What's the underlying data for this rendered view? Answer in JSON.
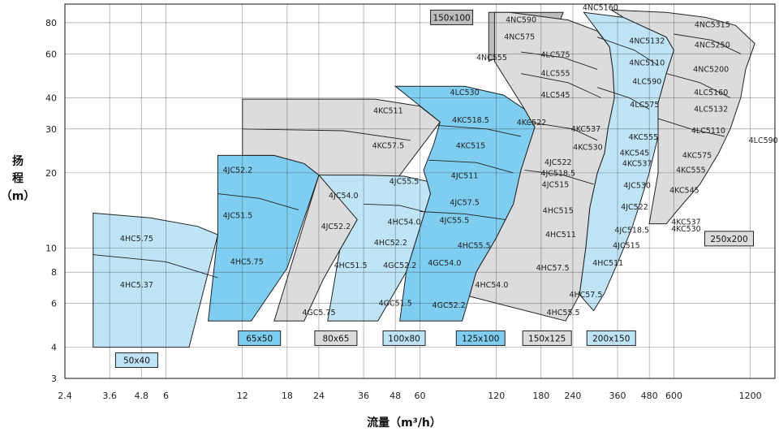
{
  "chart_data": {
    "type": "pump-performance-envelope",
    "xlabel": "流量（m³/h）",
    "ylabel": [
      "扬",
      "程",
      "（m）"
    ],
    "x_scale": "log",
    "y_scale": "log",
    "xlim": [
      2.4,
      1500
    ],
    "ylim": [
      3,
      95
    ],
    "x_ticks": [
      2.4,
      3.6,
      4.8,
      6,
      12,
      18,
      24,
      36,
      48,
      60,
      120,
      180,
      240,
      360,
      480,
      600,
      1200
    ],
    "y_ticks": [
      3,
      4,
      6,
      8,
      10,
      20,
      30,
      40,
      60,
      80
    ],
    "grid": true,
    "colors": {
      "light_blue": "#bfe4f6",
      "mid_blue": "#7fcdf0",
      "light_gray": "#dcdcdc",
      "dark_gray": "#bdbdbd",
      "outline": "#222222"
    },
    "regions": [
      {
        "label": "4HC5.75",
        "x": 4.6,
        "y": 10.9,
        "color": "light_blue"
      },
      {
        "label": "4HC5.37",
        "x": 4.6,
        "y": 7.1,
        "color": "light_blue"
      },
      {
        "label": "4JC52.2",
        "x": 11.5,
        "y": 20.5,
        "color": "mid_blue"
      },
      {
        "label": "4JC51.5",
        "x": 11.5,
        "y": 13.5,
        "color": "mid_blue"
      },
      {
        "label": "4HC5.75",
        "x": 12.5,
        "y": 8.8,
        "color": "mid_blue"
      },
      {
        "label": "4KC511",
        "x": 45,
        "y": 35.5,
        "color": "light_gray"
      },
      {
        "label": "4KC57.5",
        "x": 45,
        "y": 25.7,
        "color": "light_gray"
      },
      {
        "label": "4JC54.0",
        "x": 30,
        "y": 16.2,
        "color": "light_gray"
      },
      {
        "label": "4JC52.2",
        "x": 28,
        "y": 12.2,
        "color": "light_gray"
      },
      {
        "label": "4HC51.5",
        "x": 32,
        "y": 8.5,
        "color": "light_gray"
      },
      {
        "label": "4GC5.75",
        "x": 24,
        "y": 5.5,
        "color": "light_gray"
      },
      {
        "label": "4JC55.5",
        "x": 52,
        "y": 18.5,
        "color": "light_blue"
      },
      {
        "label": "4HC54.0",
        "x": 52,
        "y": 12.7,
        "color": "light_blue"
      },
      {
        "label": "4HC52.2",
        "x": 46,
        "y": 10.5,
        "color": "light_blue"
      },
      {
        "label": "4GC52.2",
        "x": 50,
        "y": 8.5,
        "color": "light_blue"
      },
      {
        "label": "4GC51.5",
        "x": 48,
        "y": 6.0,
        "color": "light_blue"
      },
      {
        "label": "4LC530",
        "x": 90,
        "y": 42,
        "color": "mid_blue"
      },
      {
        "label": "4KC518.5",
        "x": 95,
        "y": 32.5,
        "color": "mid_blue"
      },
      {
        "label": "4KC515",
        "x": 95,
        "y": 25.7,
        "color": "mid_blue"
      },
      {
        "label": "4JC511",
        "x": 90,
        "y": 19.5,
        "color": "mid_blue"
      },
      {
        "label": "4JC57.5",
        "x": 90,
        "y": 15.2,
        "color": "mid_blue"
      },
      {
        "label": "4JC55.5",
        "x": 82,
        "y": 12.9,
        "color": "mid_blue"
      },
      {
        "label": "4HC55.5",
        "x": 98,
        "y": 10.2,
        "color": "mid_blue"
      },
      {
        "label": "4GC54.0",
        "x": 75,
        "y": 8.7,
        "color": "mid_blue"
      },
      {
        "label": "4GC52.2",
        "x": 78,
        "y": 5.9,
        "color": "mid_blue"
      },
      {
        "label": "4HC54.0",
        "x": 115,
        "y": 7.1,
        "color": "mid_blue"
      },
      {
        "label": "4KC522",
        "x": 165,
        "y": 31.8,
        "color": "mid_blue"
      },
      {
        "label": "150x100",
        "x": 80,
        "y": 84,
        "color": "box"
      },
      {
        "label": "4NC590",
        "x": 150,
        "y": 82,
        "color": "dark_gray"
      },
      {
        "label": "4NC575",
        "x": 148,
        "y": 70,
        "color": "dark_gray"
      },
      {
        "label": "4NC555",
        "x": 115,
        "y": 58,
        "color": "dark_gray"
      },
      {
        "label": "4LC575",
        "x": 205,
        "y": 59.5,
        "color": "light_gray"
      },
      {
        "label": "4LC555",
        "x": 205,
        "y": 50,
        "color": "light_gray"
      },
      {
        "label": "4LC545",
        "x": 205,
        "y": 41,
        "color": "light_gray"
      },
      {
        "label": "4KC537",
        "x": 270,
        "y": 30,
        "color": "light_gray"
      },
      {
        "label": "4KC530",
        "x": 275,
        "y": 25.3,
        "color": "light_gray"
      },
      {
        "label": "4JC522",
        "x": 210,
        "y": 22,
        "color": "light_gray"
      },
      {
        "label": "4JC518.5",
        "x": 210,
        "y": 19.9,
        "color": "light_gray"
      },
      {
        "label": "4JC515",
        "x": 205,
        "y": 17.9,
        "color": "light_gray"
      },
      {
        "label": "4HC515",
        "x": 210,
        "y": 14.1,
        "color": "light_gray"
      },
      {
        "label": "4HC511",
        "x": 215,
        "y": 11.3,
        "color": "light_gray"
      },
      {
        "label": "4HC57.5",
        "x": 200,
        "y": 8.3,
        "color": "light_gray"
      },
      {
        "label": "4HC57.5",
        "x": 270,
        "y": 6.5,
        "color": "light_gray"
      },
      {
        "label": "4HC55.5",
        "x": 220,
        "y": 5.5,
        "color": "light_gray"
      },
      {
        "label": "4NC5160",
        "x": 308,
        "y": 92,
        "color": "light_gray"
      },
      {
        "label": "4NC5132",
        "x": 470,
        "y": 67.5,
        "color": "light_blue"
      },
      {
        "label": "4NC5110",
        "x": 470,
        "y": 55.2,
        "color": "light_blue"
      },
      {
        "label": "4LC590",
        "x": 470,
        "y": 46.5,
        "color": "light_blue"
      },
      {
        "label": "4LC575",
        "x": 460,
        "y": 37.5,
        "color": "light_blue"
      },
      {
        "label": "4KC555",
        "x": 455,
        "y": 27.8,
        "color": "light_blue"
      },
      {
        "label": "4KC545",
        "x": 420,
        "y": 24,
        "color": "light_blue"
      },
      {
        "label": "4KC537",
        "x": 430,
        "y": 21.8,
        "color": "light_blue"
      },
      {
        "label": "4JC530",
        "x": 430,
        "y": 17.8,
        "color": "light_blue"
      },
      {
        "label": "4JC522",
        "x": 420,
        "y": 14.6,
        "color": "light_blue"
      },
      {
        "label": "4JC518.5",
        "x": 410,
        "y": 11.8,
        "color": "light_blue"
      },
      {
        "label": "4JC515",
        "x": 390,
        "y": 10.2,
        "color": "light_blue"
      },
      {
        "label": "4HC511",
        "x": 330,
        "y": 8.7,
        "color": "light_blue"
      },
      {
        "label": "4NC5315",
        "x": 850,
        "y": 78.5,
        "color": "light_gray"
      },
      {
        "label": "4NC5250",
        "x": 850,
        "y": 65,
        "color": "light_gray"
      },
      {
        "label": "4NC5200",
        "x": 840,
        "y": 52,
        "color": "light_gray"
      },
      {
        "label": "4LC5160",
        "x": 840,
        "y": 42,
        "color": "light_gray"
      },
      {
        "label": "4LC5132",
        "x": 840,
        "y": 36,
        "color": "light_gray"
      },
      {
        "label": "4LC5110",
        "x": 820,
        "y": 29.5,
        "color": "light_gray"
      },
      {
        "label": "4KC575",
        "x": 740,
        "y": 23.5,
        "color": "light_gray"
      },
      {
        "label": "4KC555",
        "x": 700,
        "y": 20.5,
        "color": "light_gray"
      },
      {
        "label": "4KC545",
        "x": 660,
        "y": 17,
        "color": "light_gray"
      },
      {
        "label": "4LC590",
        "x": 1350,
        "y": 27,
        "color": "callout"
      },
      {
        "label": "4KC537",
        "x": 670,
        "y": 12.7,
        "color": "callout"
      },
      {
        "label": "4KC530",
        "x": 670,
        "y": 11.9,
        "color": "callout"
      }
    ],
    "size_boxes": [
      {
        "label": "50x40",
        "x": 4.6,
        "y": 3.55,
        "color": "light_blue"
      },
      {
        "label": "65x50",
        "x": 14,
        "y": 4.35,
        "color": "mid_blue"
      },
      {
        "label": "80x65",
        "x": 28,
        "y": 4.35,
        "color": "light_gray"
      },
      {
        "label": "100x80",
        "x": 52,
        "y": 4.35,
        "color": "light_blue"
      },
      {
        "label": "125x100",
        "x": 104,
        "y": 4.35,
        "color": "mid_blue"
      },
      {
        "label": "150x125",
        "x": 190,
        "y": 4.35,
        "color": "light_gray"
      },
      {
        "label": "200x150",
        "x": 340,
        "y": 4.35,
        "color": "light_blue"
      },
      {
        "label": "250x200",
        "x": 990,
        "y": 10.9,
        "color": "light_gray"
      }
    ]
  }
}
